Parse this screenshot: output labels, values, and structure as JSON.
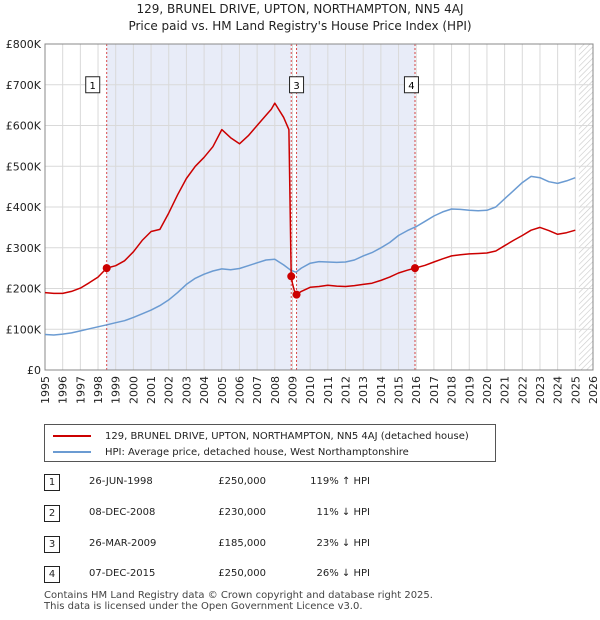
{
  "chart_data": {
    "type": "line",
    "title": "129, BRUNEL DRIVE, UPTON, NORTHAMPTON, NN5 4AJ",
    "subtitle": "Price paid vs. HM Land Registry's House Price Index (HPI)",
    "xlabel": "",
    "ylabel": "",
    "xlim": [
      1995,
      2026
    ],
    "ylim": [
      0,
      800000
    ],
    "x_ticks": [
      "1995",
      "1996",
      "1997",
      "1998",
      "1999",
      "2000",
      "2001",
      "2002",
      "2003",
      "2004",
      "2005",
      "2006",
      "2007",
      "2008",
      "2009",
      "2010",
      "2011",
      "2012",
      "2013",
      "2014",
      "2015",
      "2016",
      "2017",
      "2018",
      "2019",
      "2020",
      "2021",
      "2022",
      "2023",
      "2024",
      "2025",
      "2026"
    ],
    "y_ticks": [
      {
        "value": 0,
        "label": "£0"
      },
      {
        "value": 100000,
        "label": "£100K"
      },
      {
        "value": 200000,
        "label": "£200K"
      },
      {
        "value": 300000,
        "label": "£300K"
      },
      {
        "value": 400000,
        "label": "£400K"
      },
      {
        "value": 500000,
        "label": "£500K"
      },
      {
        "value": 600000,
        "label": "£600K"
      },
      {
        "value": 700000,
        "label": "£700K"
      },
      {
        "value": 800000,
        "label": "£800K"
      }
    ],
    "shaded_ranges": [
      [
        1998.49,
        2008.93
      ],
      [
        2009.23,
        2015.93
      ]
    ],
    "future_hatch_start": 2025.2,
    "series": [
      {
        "name": "129, BRUNEL DRIVE, UPTON, NORTHAMPTON, NN5 4AJ (detached house)",
        "color": "#cc0000",
        "x": [
          1995.0,
          1995.5,
          1996.0,
          1996.5,
          1997.0,
          1997.5,
          1998.0,
          1998.49,
          1999.0,
          1999.5,
          2000.0,
          2000.5,
          2001.0,
          2001.5,
          2002.0,
          2002.5,
          2003.0,
          2003.5,
          2004.0,
          2004.5,
          2005.0,
          2005.5,
          2006.0,
          2006.5,
          2007.0,
          2007.5,
          2007.8,
          2008.0,
          2008.5,
          2008.8,
          2008.93,
          2009.0,
          2009.1,
          2009.23,
          2009.5,
          2010.0,
          2010.5,
          2011.0,
          2011.5,
          2012.0,
          2012.5,
          2013.0,
          2013.5,
          2014.0,
          2014.5,
          2015.0,
          2015.5,
          2015.93,
          2016.5,
          2017.0,
          2017.5,
          2018.0,
          2018.5,
          2019.0,
          2019.5,
          2020.0,
          2020.5,
          2021.0,
          2021.5,
          2022.0,
          2022.5,
          2023.0,
          2023.5,
          2024.0,
          2024.5,
          2025.0
        ],
        "y": [
          190000,
          188000,
          188000,
          193000,
          201000,
          214000,
          228000,
          250000,
          256000,
          268000,
          290000,
          318000,
          340000,
          345000,
          385000,
          430000,
          470000,
          500000,
          522000,
          548000,
          590000,
          570000,
          555000,
          575000,
          600000,
          625000,
          640000,
          655000,
          620000,
          590000,
          230000,
          212000,
          195000,
          185000,
          193000,
          203000,
          205000,
          208000,
          206000,
          205000,
          207000,
          210000,
          213000,
          220000,
          228000,
          238000,
          245000,
          250000,
          257000,
          265000,
          273000,
          280000,
          283000,
          285000,
          286000,
          287000,
          292000,
          305000,
          318000,
          330000,
          343000,
          350000,
          342000,
          333000,
          337000,
          343000
        ]
      },
      {
        "name": "HPI: Average price, detached house, West Northamptonshire",
        "color": "#6b9bd2",
        "x": [
          1995.0,
          1995.5,
          1996.0,
          1996.5,
          1997.0,
          1997.5,
          1998.0,
          1998.5,
          1999.0,
          1999.5,
          2000.0,
          2000.5,
          2001.0,
          2001.5,
          2002.0,
          2002.5,
          2003.0,
          2003.5,
          2004.0,
          2004.5,
          2005.0,
          2005.5,
          2006.0,
          2006.5,
          2007.0,
          2007.5,
          2008.0,
          2008.5,
          2008.9,
          2009.2,
          2009.5,
          2010.0,
          2010.5,
          2011.0,
          2011.5,
          2012.0,
          2012.5,
          2013.0,
          2013.5,
          2014.0,
          2014.5,
          2015.0,
          2015.5,
          2016.0,
          2016.5,
          2017.0,
          2017.5,
          2018.0,
          2018.5,
          2019.0,
          2019.5,
          2020.0,
          2020.5,
          2021.0,
          2021.5,
          2022.0,
          2022.5,
          2023.0,
          2023.5,
          2024.0,
          2024.5,
          2025.0
        ],
        "y": [
          87000,
          86000,
          88000,
          91000,
          96000,
          101000,
          106000,
          111000,
          116000,
          121000,
          129000,
          138000,
          147000,
          158000,
          172000,
          190000,
          210000,
          225000,
          235000,
          243000,
          248000,
          246000,
          249000,
          256000,
          263000,
          270000,
          272000,
          258000,
          245000,
          240000,
          250000,
          262000,
          266000,
          265000,
          264000,
          265000,
          270000,
          280000,
          288000,
          300000,
          313000,
          330000,
          342000,
          352000,
          365000,
          378000,
          388000,
          395000,
          394000,
          392000,
          391000,
          392000,
          400000,
          420000,
          440000,
          460000,
          475000,
          472000,
          462000,
          458000,
          464000,
          472000
        ]
      }
    ],
    "markers": [
      {
        "label": "1",
        "x": 1998.49,
        "y": 250000
      },
      {
        "label": "2",
        "x": 2008.93,
        "y": 230000
      },
      {
        "label": "3",
        "x": 2009.23,
        "y": 185000
      },
      {
        "label": "4",
        "x": 2015.93,
        "y": 250000
      }
    ],
    "marker_label_boxes": [
      {
        "label": "1",
        "x": 1997.7,
        "y": 700000
      },
      {
        "label": "3",
        "x": 2009.23,
        "y": 700000
      },
      {
        "label": "4",
        "x": 2015.73,
        "y": 700000
      }
    ]
  },
  "legend": {
    "property_label": "129, BRUNEL DRIVE, UPTON, NORTHAMPTON, NN5 4AJ (detached house)",
    "hpi_label": "HPI: Average price, detached house, West Northamptonshire",
    "property_color": "#cc0000",
    "hpi_color": "#6b9bd2"
  },
  "transactions": [
    {
      "num": "1",
      "date": "26-JUN-1998",
      "price": "£250,000",
      "hpi": "119% ↑ HPI"
    },
    {
      "num": "2",
      "date": "08-DEC-2008",
      "price": "£230,000",
      "hpi": "11% ↓ HPI"
    },
    {
      "num": "3",
      "date": "26-MAR-2009",
      "price": "£185,000",
      "hpi": "23% ↓ HPI"
    },
    {
      "num": "4",
      "date": "07-DEC-2015",
      "price": "£250,000",
      "hpi": "26% ↓ HPI"
    }
  ],
  "footer": {
    "line1": "Contains HM Land Registry data © Crown copyright and database right 2025.",
    "line2": "This data is licensed under the Open Government Licence v3.0."
  }
}
